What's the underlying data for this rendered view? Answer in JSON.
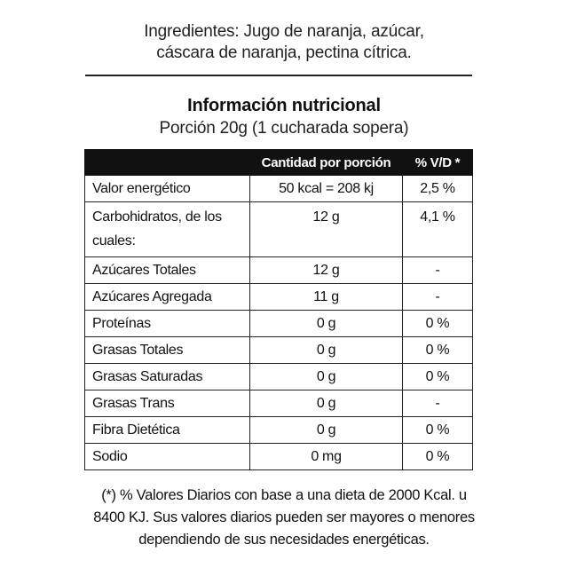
{
  "ingredients": {
    "line1": "Ingredientes: Jugo de naranja, azúcar,",
    "line2": "cáscara de naranja, pectina cítrica."
  },
  "title": "Información nutricional",
  "serving": "Porción 20g (1 cucharada sopera)",
  "table": {
    "headers": [
      "",
      "Cantidad por porción",
      "% V/D *"
    ],
    "rows": [
      {
        "nutrient": "Valor energético",
        "amount": "50 kcal = 208 kj",
        "dv": "2,5 %"
      },
      {
        "nutrient": "Carbohidratos, de los cuales:",
        "amount": "12 g",
        "dv": "4,1 %"
      },
      {
        "nutrient": "Azúcares Totales",
        "amount": "12 g",
        "dv": "-"
      },
      {
        "nutrient": "Azúcares Agregada",
        "amount": "11 g",
        "dv": "-"
      },
      {
        "nutrient": "Proteínas",
        "amount": "0 g",
        "dv": "0 %"
      },
      {
        "nutrient": "Grasas Totales",
        "amount": "0 g",
        "dv": "0 %"
      },
      {
        "nutrient": "Grasas Saturadas",
        "amount": "0 g",
        "dv": "0 %"
      },
      {
        "nutrient": "Grasas Trans",
        "amount": "0 g",
        "dv": "-"
      },
      {
        "nutrient": "Fibra Dietética",
        "amount": "0 g",
        "dv": "0 %"
      },
      {
        "nutrient": "Sodio",
        "amount": "0 mg",
        "dv": "0 %"
      }
    ]
  },
  "footnote": {
    "line1": "(*) % Valores Diarios con base a una dieta de 2000 Kcal. u",
    "line2": "8400 KJ. Sus valores diarios pueden ser mayores o menores",
    "line3": "dependiendo de sus necesidades energéticas."
  }
}
